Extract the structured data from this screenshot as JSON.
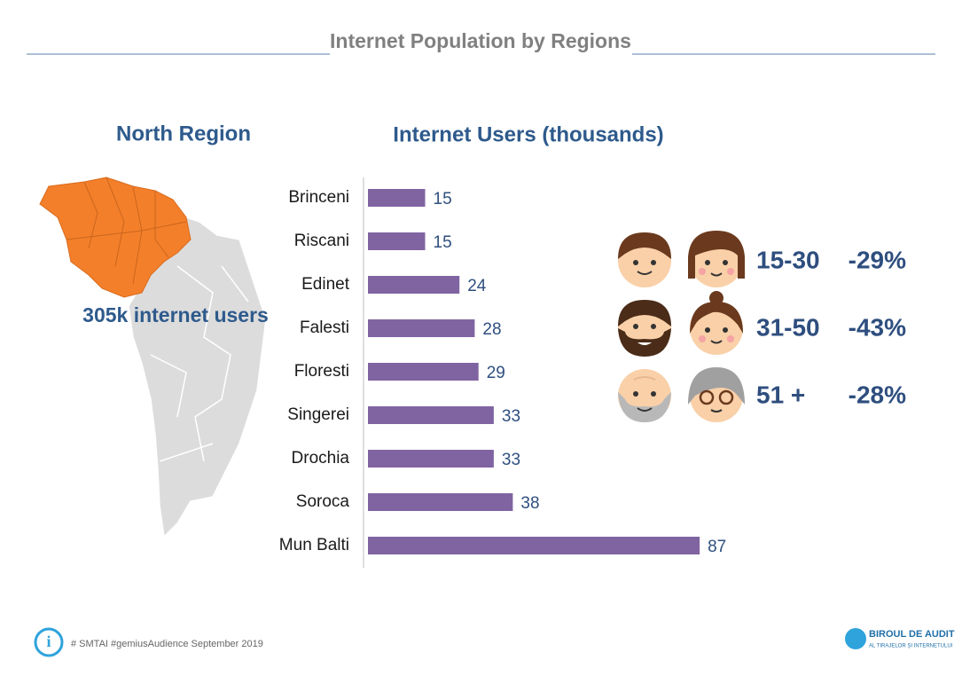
{
  "title": "Internet Population by Regions",
  "region": {
    "name": "North Region",
    "users": "305k internet users"
  },
  "chart_data": {
    "type": "bar",
    "orientation": "horizontal",
    "title": "Internet Users (thousands)",
    "categories": [
      "Brinceni",
      "Riscani",
      "Edinet",
      "Falesti",
      "Floresti",
      "Singerei",
      "Drochia",
      "Soroca",
      "Mun Balti"
    ],
    "values": [
      15,
      15,
      24,
      28,
      29,
      33,
      33,
      38,
      87
    ],
    "color": "#8064a2"
  },
  "age_groups": [
    {
      "range": "15-30",
      "share": "-29%"
    },
    {
      "range": "31-50",
      "share": "-43%"
    },
    {
      "range": "51 +",
      "share": "-28%"
    }
  ],
  "footer": {
    "source": "# SMTAI #gemiusAudience September 2019",
    "logo_line1": "BIROUL DE AUDIT",
    "logo_line2": "AL TIRAJELOR ȘI INTERNETULUI"
  }
}
